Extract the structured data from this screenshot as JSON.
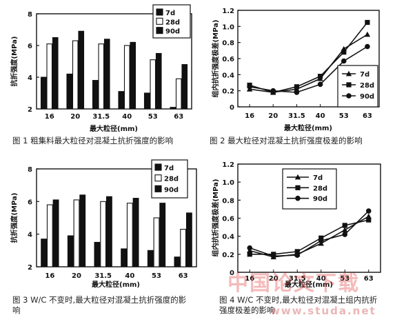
{
  "chart_data": [
    {
      "type": "bar",
      "categories": [
        "16",
        "20",
        "31.5",
        "40",
        "53",
        "63"
      ],
      "series": [
        {
          "name": "7d",
          "values": [
            4.0,
            4.2,
            3.8,
            3.1,
            3.0,
            2.1
          ]
        },
        {
          "name": "28d",
          "values": [
            6.1,
            6.3,
            6.1,
            6.0,
            5.1,
            3.9
          ]
        },
        {
          "name": "90d",
          "values": [
            6.5,
            6.9,
            6.4,
            6.2,
            5.5,
            4.8
          ]
        }
      ],
      "ylabel": "抗折强度(MPa)",
      "xlabel": "最大粒径(mm)",
      "ylim": [
        2,
        8
      ],
      "yticks": [
        "2",
        "4",
        "6",
        "8"
      ],
      "legend": "top-right",
      "caption": "图 1   粗集料最大粒径对混凝土抗折强度的影响",
      "colors": {
        "7d": "#111111",
        "28d": "#ffffff",
        "90d": "#111111"
      }
    },
    {
      "type": "line",
      "categories": [
        "16",
        "20",
        "31.5",
        "40",
        "53",
        "63"
      ],
      "series": [
        {
          "name": "7d",
          "values": [
            0.22,
            0.18,
            0.22,
            0.35,
            0.72,
            0.9
          ]
        },
        {
          "name": "28d",
          "values": [
            0.27,
            0.18,
            0.25,
            0.38,
            0.68,
            1.05
          ]
        },
        {
          "name": "90d",
          "values": [
            0.25,
            0.2,
            0.18,
            0.28,
            0.57,
            0.75
          ]
        }
      ],
      "ylabel": "组内抗折强度极差(MPa)",
      "xlabel": "最大粒径(mm)",
      "ylim": [
        0,
        1.2
      ],
      "yticks": [
        "0",
        "0.2",
        "0.4",
        "0.6",
        "0.8",
        "1.0",
        "1.2"
      ],
      "legend": "right",
      "caption": "图 2   最大粒径对混凝土抗折强度极差的影响"
    },
    {
      "type": "bar",
      "categories": [
        "16",
        "20",
        "31.5",
        "40",
        "53",
        "63"
      ],
      "series": [
        {
          "name": "7d",
          "values": [
            3.7,
            3.9,
            3.5,
            3.1,
            3.0,
            2.6
          ]
        },
        {
          "name": "28d",
          "values": [
            5.8,
            6.1,
            6.0,
            5.9,
            5.0,
            4.3
          ]
        },
        {
          "name": "90d",
          "values": [
            6.1,
            6.4,
            6.3,
            6.2,
            5.9,
            5.3
          ]
        }
      ],
      "ylabel": "抗折强度(MPa)",
      "xlabel": "最大粒径(mm)",
      "ylim": [
        2,
        8
      ],
      "yticks": [
        "2",
        "4",
        "6",
        "8"
      ],
      "legend": "top-right",
      "caption": "图 3   W/C 不变时,最大粒径对混凝土抗折强度的影响",
      "colors": {
        "7d": "#111111",
        "28d": "#ffffff",
        "90d": "#111111"
      }
    },
    {
      "type": "line",
      "categories": [
        "16",
        "20",
        "31.5",
        "40",
        "53",
        "63"
      ],
      "series": [
        {
          "name": "7d",
          "values": [
            0.24,
            0.17,
            0.2,
            0.32,
            0.47,
            0.62
          ]
        },
        {
          "name": "28d",
          "values": [
            0.2,
            0.2,
            0.23,
            0.38,
            0.52,
            0.58
          ]
        },
        {
          "name": "90d",
          "values": [
            0.27,
            0.18,
            0.19,
            0.35,
            0.42,
            0.68
          ]
        }
      ],
      "ylabel": "组内抗折强度极差(MPa)",
      "xlabel": "最大粒径(mm)",
      "ylim": [
        0,
        1.2
      ],
      "yticks": [
        "0",
        "0.2",
        "0.4",
        "0.6",
        "0.8",
        "1.0",
        "1.2"
      ],
      "legend": "top-center",
      "caption": "图 4   W/C 不变时,最大粒径对混凝土组内抗折强度极差的影响"
    }
  ],
  "watermark": {
    "text": "中国论文下载",
    "url": "www.studa.net"
  }
}
